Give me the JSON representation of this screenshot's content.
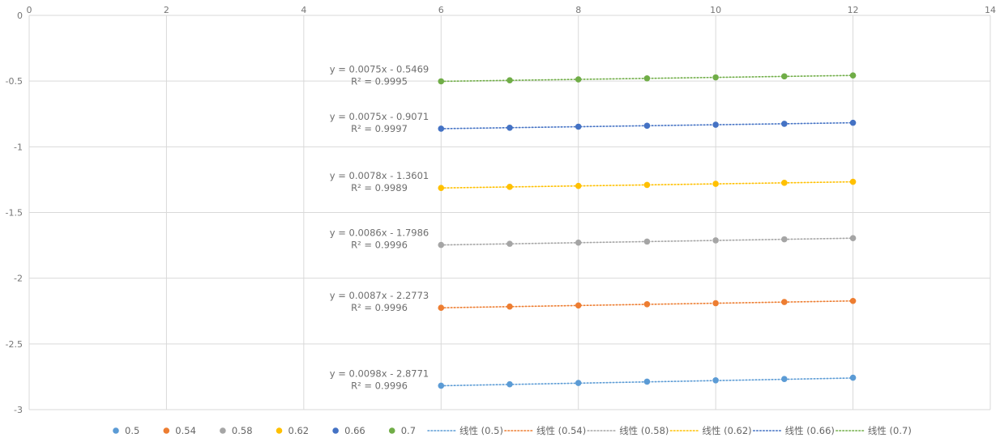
{
  "chart_data": {
    "type": "scatter",
    "title": "",
    "xlabel": "",
    "ylabel": "",
    "xlim": [
      0,
      14
    ],
    "ylim": [
      -3,
      0
    ],
    "x_ticks": [
      0,
      2,
      4,
      6,
      8,
      10,
      12,
      14
    ],
    "y_ticks": [
      0,
      -0.5,
      -1,
      -1.5,
      -2,
      -2.5,
      -3
    ],
    "x_tick_labels": [
      "0",
      "2",
      "4",
      "6",
      "8",
      "10",
      "12",
      "14"
    ],
    "y_tick_labels": [
      "0",
      "-0.5",
      "-1",
      "-1.5",
      "-2",
      "-2.5",
      "-3"
    ],
    "grid": true,
    "legend_position": "bottom",
    "x": [
      6,
      7,
      8,
      9,
      10,
      11,
      12
    ],
    "series": [
      {
        "name": "0.5",
        "color": "#5b9bd5",
        "values": [
          -2.818,
          -2.807,
          -2.797,
          -2.787,
          -2.777,
          -2.767,
          -2.757
        ],
        "trendline": {
          "name": "线性 (0.5)",
          "slope": 0.0098,
          "intercept": -2.8771,
          "equation": "y = 0.0098x - 2.8771",
          "r2": "R² = 0.9996"
        }
      },
      {
        "name": "0.54",
        "color": "#ed7d31",
        "values": [
          -2.225,
          -2.216,
          -2.207,
          -2.198,
          -2.19,
          -2.181,
          -2.173
        ],
        "trendline": {
          "name": "线性 (0.54)",
          "slope": 0.0087,
          "intercept": -2.2773,
          "equation": "y = 0.0087x - 2.2773",
          "r2": "R² = 0.9996"
        }
      },
      {
        "name": "0.58",
        "color": "#a5a5a5",
        "values": [
          -1.747,
          -1.738,
          -1.729,
          -1.721,
          -1.712,
          -1.704,
          -1.695
        ],
        "trendline": {
          "name": "线性 (0.58)",
          "slope": 0.0086,
          "intercept": -1.7986,
          "equation": "y = 0.0086x - 1.7986",
          "r2": "R² = 0.9996"
        }
      },
      {
        "name": "0.62",
        "color": "#ffc000",
        "values": [
          -1.313,
          -1.305,
          -1.298,
          -1.29,
          -1.282,
          -1.274,
          -1.266
        ],
        "trendline": {
          "name": "线性 (0.62)",
          "slope": 0.0078,
          "intercept": -1.3601,
          "equation": "y = 0.0078x - 1.3601",
          "r2": "R² = 0.9989"
        }
      },
      {
        "name": "0.66",
        "color": "#4472c4",
        "values": [
          -0.862,
          -0.855,
          -0.847,
          -0.84,
          -0.832,
          -0.825,
          -0.817
        ],
        "trendline": {
          "name": "线性 (0.66)",
          "slope": 0.0075,
          "intercept": -0.9071,
          "equation": "y = 0.0075x - 0.9071",
          "r2": "R² = 0.9997"
        }
      },
      {
        "name": "0.7",
        "color": "#70ad47",
        "values": [
          -0.502,
          -0.494,
          -0.487,
          -0.479,
          -0.472,
          -0.464,
          -0.457
        ],
        "trendline": {
          "name": "线性 (0.7)",
          "slope": 0.0075,
          "intercept": -0.5469,
          "equation": "y = 0.0075x - 0.5469",
          "r2": "R² = 0.9995"
        }
      }
    ]
  }
}
